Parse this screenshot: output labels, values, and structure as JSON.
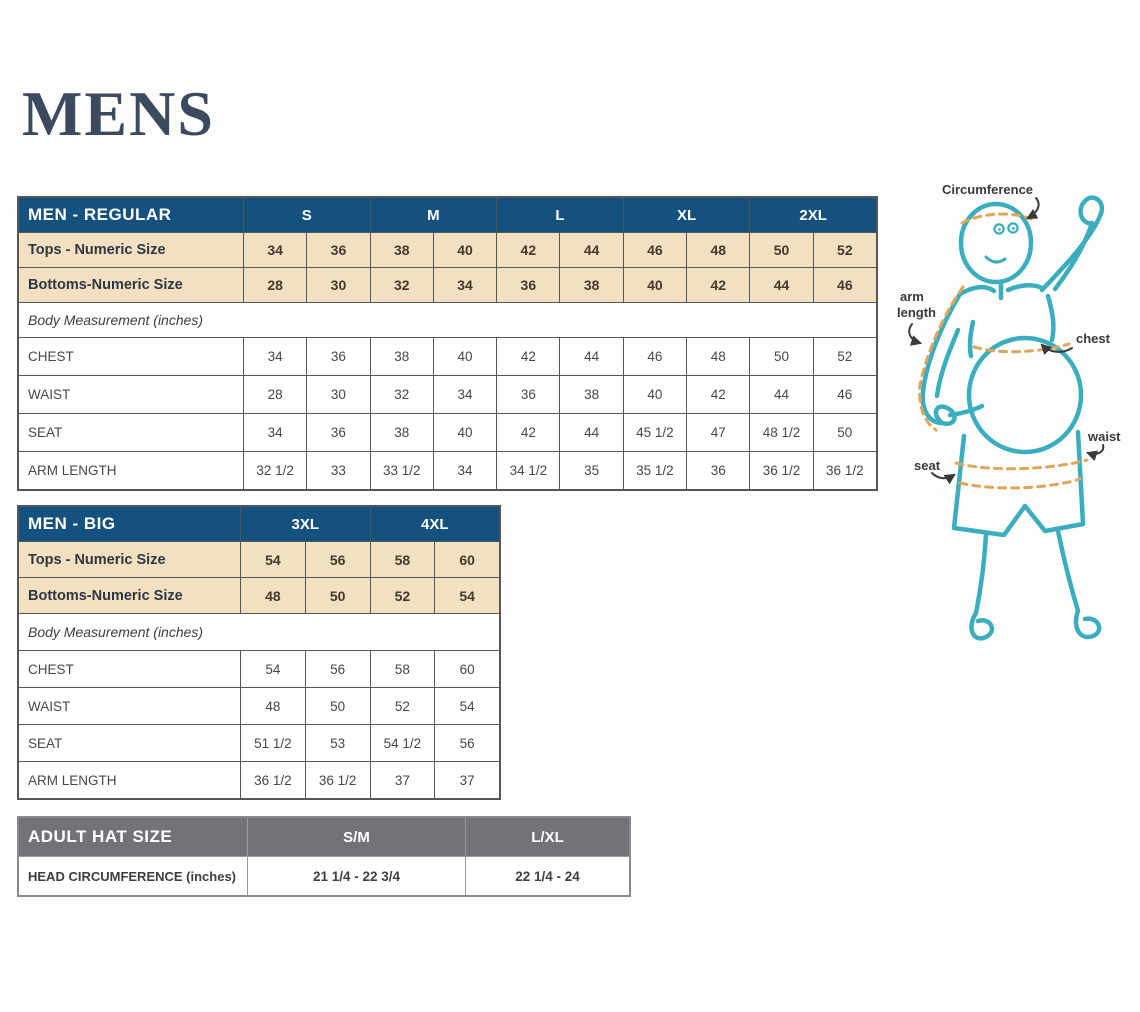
{
  "page": {
    "title": "MENS"
  },
  "colors": {
    "header_navy": "#15517f",
    "row_tan": "#f3dfc1",
    "hat_header_gray": "#717377",
    "figure_teal": "#3aaebe",
    "measure_dash_orange": "#dfa55c",
    "title_navy": "#3b4a5e",
    "border_gray": "#55565a"
  },
  "regular_table": {
    "title": "MEN - REGULAR",
    "size_groups": [
      "S",
      "M",
      "L",
      "XL",
      "2XL"
    ],
    "numeric_rows": [
      {
        "label": "Tops - Numeric Size",
        "values": [
          "34",
          "36",
          "38",
          "40",
          "42",
          "44",
          "46",
          "48",
          "50",
          "52"
        ]
      },
      {
        "label": "Bottoms-Numeric Size",
        "values": [
          "28",
          "30",
          "32",
          "34",
          "36",
          "38",
          "40",
          "42",
          "44",
          "46"
        ]
      }
    ],
    "section_label": "Body Measurement (inches)",
    "measurement_rows": [
      {
        "label": "CHEST",
        "values": [
          "34",
          "36",
          "38",
          "40",
          "42",
          "44",
          "46",
          "48",
          "50",
          "52"
        ]
      },
      {
        "label": "WAIST",
        "values": [
          "28",
          "30",
          "32",
          "34",
          "36",
          "38",
          "40",
          "42",
          "44",
          "46"
        ]
      },
      {
        "label": "SEAT",
        "values": [
          "34",
          "36",
          "38",
          "40",
          "42",
          "44",
          "45 1/2",
          "47",
          "48 1/2",
          "50"
        ]
      },
      {
        "label": "ARM LENGTH",
        "values": [
          "32 1/2",
          "33",
          "33 1/2",
          "34",
          "34 1/2",
          "35",
          "35 1/2",
          "36",
          "36 1/2",
          "36 1/2"
        ]
      }
    ]
  },
  "big_table": {
    "title": "MEN - BIG",
    "size_groups": [
      "3XL",
      "4XL"
    ],
    "numeric_rows": [
      {
        "label": "Tops - Numeric Size",
        "values": [
          "54",
          "56",
          "58",
          "60"
        ]
      },
      {
        "label": "Bottoms-Numeric Size",
        "values": [
          "48",
          "50",
          "52",
          "54"
        ]
      }
    ],
    "section_label": "Body Measurement (inches)",
    "measurement_rows": [
      {
        "label": "CHEST",
        "values": [
          "54",
          "56",
          "58",
          "60"
        ]
      },
      {
        "label": "WAIST",
        "values": [
          "48",
          "50",
          "52",
          "54"
        ]
      },
      {
        "label": "SEAT",
        "values": [
          "51 1/2",
          "53",
          "54 1/2",
          "56"
        ]
      },
      {
        "label": "ARM LENGTH",
        "values": [
          "36 1/2",
          "36 1/2",
          "37",
          "37"
        ]
      }
    ]
  },
  "hat_table": {
    "title": "ADULT HAT SIZE",
    "columns": [
      "S/M",
      "L/XL"
    ],
    "rows": [
      {
        "label": "HEAD CIRCUMFERENCE (inches)",
        "values": [
          "21 1/4 - 22 3/4",
          "22 1/4 - 24"
        ]
      }
    ]
  },
  "figure": {
    "labels": {
      "circumference": "Circumference",
      "arm_length_line1": "arm",
      "arm_length_line2": "length",
      "chest": "chest",
      "waist": "waist",
      "seat": "seat"
    }
  }
}
